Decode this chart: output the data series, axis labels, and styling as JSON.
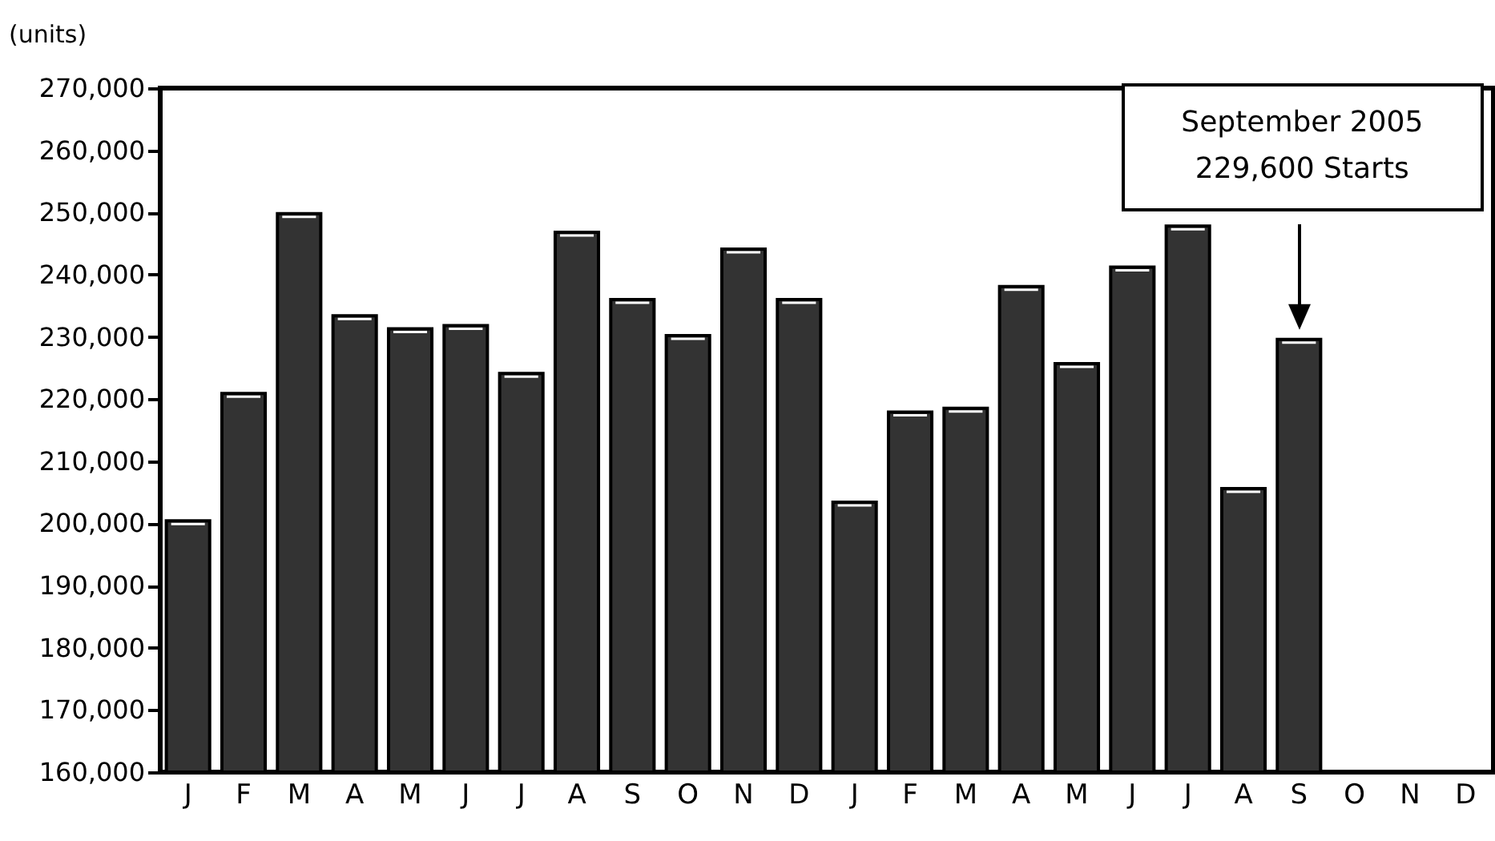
{
  "chart_data": {
    "type": "bar",
    "ylabel": "(units)",
    "categories": [
      "J",
      "F",
      "M",
      "A",
      "M",
      "J",
      "J",
      "A",
      "S",
      "O",
      "N",
      "D",
      "J",
      "F",
      "M",
      "A",
      "M",
      "J",
      "J",
      "A",
      "S",
      "O",
      "N",
      "D"
    ],
    "values": [
      200400,
      220900,
      249800,
      233400,
      231300,
      231800,
      224100,
      246800,
      236000,
      230200,
      244100,
      236000,
      203400,
      217900,
      218500,
      238100,
      225700,
      241200,
      247800,
      205600,
      229600,
      null,
      null,
      null
    ],
    "color": "#333333",
    "ylim": [
      160000,
      270000
    ],
    "yticks": [
      {
        "value": 160000,
        "label": "160,000"
      },
      {
        "value": 170000,
        "label": "170,000"
      },
      {
        "value": 180000,
        "label": "180,000"
      },
      {
        "value": 190000,
        "label": "190,000"
      },
      {
        "value": 200000,
        "label": "200,000"
      },
      {
        "value": 210000,
        "label": "210,000"
      },
      {
        "value": 220000,
        "label": "220,000"
      },
      {
        "value": 230000,
        "label": "230,000"
      },
      {
        "value": 240000,
        "label": "240,000"
      },
      {
        "value": 250000,
        "label": "250,000"
      },
      {
        "value": 260000,
        "label": "260,000"
      },
      {
        "value": 270000,
        "label": "270,000"
      }
    ],
    "grid": false,
    "annotations": [
      "September 2005\n229,600 Starts"
    ]
  }
}
